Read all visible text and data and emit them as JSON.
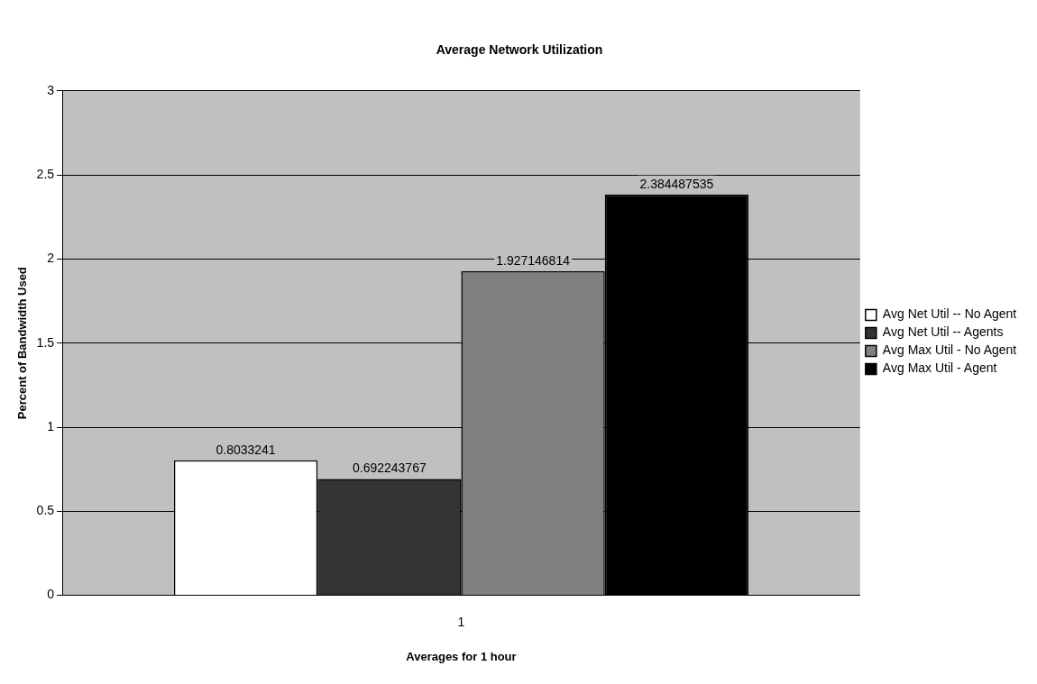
{
  "chart_data": {
    "type": "bar",
    "title": "Average Network Utilization",
    "xlabel": "Averages for 1 hour",
    "ylabel": "Percent of Bandwidth Used",
    "categories": [
      "1"
    ],
    "series": [
      {
        "name": "Avg Net Util -- No Agent",
        "color": "#ffffff",
        "values": [
          0.8033241
        ]
      },
      {
        "name": "Avg Net Util -- Agents",
        "color": "#333333",
        "values": [
          0.692243767
        ]
      },
      {
        "name": "Avg Max Util - No Agent",
        "color": "#808080",
        "values": [
          1.927146814
        ]
      },
      {
        "name": "Avg Max Util - Agent",
        "color": "#000000",
        "values": [
          2.384487535
        ]
      }
    ],
    "ylim": [
      0,
      3
    ],
    "yticks": [
      0,
      0.5,
      1,
      1.5,
      2,
      2.5,
      3
    ],
    "grid": "y",
    "legend": "right",
    "data_labels": true
  }
}
